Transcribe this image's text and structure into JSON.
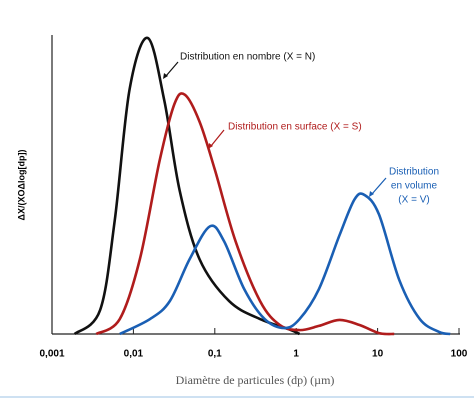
{
  "chart_data": {
    "type": "line",
    "xlabel": "Diamètre de particules (dp) (µm)",
    "ylabel": "ΔX/(XOΔlog[dp])",
    "log_x": true,
    "xlim": [
      0.001,
      100
    ],
    "xticks": [
      {
        "value": 0.001,
        "label": "0,001"
      },
      {
        "value": 0.01,
        "label": "0,01"
      },
      {
        "value": 0.1,
        "label": "0,1"
      },
      1,
      10,
      100
    ],
    "ylim": [
      0,
      100
    ],
    "series": [
      {
        "name": "Distribution en nombre (X = N)",
        "color": "#111111",
        "x": [
          0.0019,
          0.0039,
          0.0059,
          0.009,
          0.015,
          0.024,
          0.037,
          0.065,
          0.15,
          0.36,
          0.83,
          1.1
        ],
        "values": [
          0,
          8,
          38,
          82,
          99,
          78,
          48,
          25,
          11,
          5,
          1.5,
          0
        ]
      },
      {
        "name": "Distribution en surface (X = S)",
        "color": "#b01c1c",
        "x": [
          0.0035,
          0.0068,
          0.012,
          0.021,
          0.032,
          0.043,
          0.065,
          0.1,
          0.18,
          0.36,
          0.63,
          1.1,
          1.9,
          3.4,
          6,
          10.4,
          16
        ],
        "values": [
          0,
          5,
          25,
          58,
          77,
          80,
          71,
          55,
          31,
          11,
          3,
          1.3,
          2.7,
          4.7,
          3,
          0.3,
          0
        ]
      },
      {
        "name": "Distribution en volume (X = V)",
        "color": "#1a5fb4",
        "x": [
          0.0068,
          0.016,
          0.028,
          0.049,
          0.087,
          0.13,
          0.23,
          0.41,
          0.72,
          1.1,
          1.9,
          3.4,
          5.2,
          6.9,
          10.4,
          18.5,
          33,
          57,
          78
        ],
        "values": [
          0,
          5,
          11,
          25,
          36,
          31,
          15,
          5,
          2,
          5,
          15,
          33,
          45,
          46.5,
          40,
          18,
          5,
          0.7,
          0
        ]
      }
    ],
    "annotations": [
      {
        "lines": [
          "Distribution en nombre (X = N)"
        ],
        "color": "#111111"
      },
      {
        "lines": [
          "Distribution en surface (X = S)"
        ],
        "color": "#b01c1c"
      },
      {
        "lines": [
          "Distribution",
          "en volume",
          "(X = V)"
        ],
        "color": "#1a5fb4"
      }
    ]
  }
}
